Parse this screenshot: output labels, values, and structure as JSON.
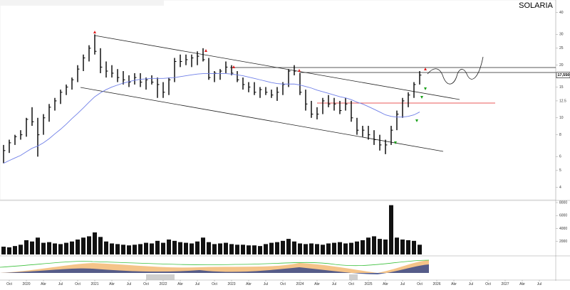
{
  "chart_data": {
    "type": "ohlc",
    "title": "SOLARIA",
    "log_scale": true,
    "bar_color": "#000000",
    "x": [
      "2019-09",
      "2019-10",
      "2019-11",
      "2019-12",
      "2020-01",
      "2020-02",
      "2020-03",
      "2020-04",
      "2020-05",
      "2020-06",
      "2020-07",
      "2020-08",
      "2020-09",
      "2020-10",
      "2020-11",
      "2020-12",
      "2021-01",
      "2021-02",
      "2021-03",
      "2021-04",
      "2021-05",
      "2021-06",
      "2021-07",
      "2021-08",
      "2021-09",
      "2021-10",
      "2021-11",
      "2021-12",
      "2022-01",
      "2022-02",
      "2022-03",
      "2022-04",
      "2022-05",
      "2022-06",
      "2022-07",
      "2022-08",
      "2022-09",
      "2022-10",
      "2022-11",
      "2022-12",
      "2023-01",
      "2023-02",
      "2023-03",
      "2023-04",
      "2023-05",
      "2023-06",
      "2023-07",
      "2023-08",
      "2023-09",
      "2023-10",
      "2023-11",
      "2023-12",
      "2024-01",
      "2024-02",
      "2024-03",
      "2024-04",
      "2024-05",
      "2024-06",
      "2024-07",
      "2024-08",
      "2024-09",
      "2024-10",
      "2024-11",
      "2024-12",
      "2025-01",
      "2025-02",
      "2025-03",
      "2025-04",
      "2025-05",
      "2025-06",
      "2025-07",
      "2025-08",
      "2025-09",
      "2025-10"
    ],
    "high": [
      7,
      7.5,
      8,
      8.5,
      10,
      11.5,
      10,
      10.5,
      12,
      13,
      14.5,
      15.5,
      17,
      20,
      23,
      26,
      30,
      25,
      21,
      20,
      19,
      18.5,
      17.5,
      18,
      18,
      17,
      17.5,
      17,
      16,
      17,
      22,
      23,
      23,
      23,
      24,
      25,
      22,
      18.5,
      19,
      21,
      20,
      18.5,
      17,
      16,
      16,
      15,
      15,
      14.5,
      15,
      16,
      19,
      20,
      18,
      14.5,
      12.5,
      11.5,
      13,
      13.5,
      13,
      12.5,
      13,
      12.5,
      10,
      9,
      9,
      8.5,
      8,
      7.5,
      9,
      11,
      13,
      14,
      16,
      18.5
    ],
    "low": [
      5.5,
      6.3,
      7,
      7.5,
      7.8,
      9,
      6,
      8,
      9.5,
      11,
      12,
      13.5,
      14.5,
      16,
      18.5,
      21,
      23,
      18,
      17,
      17,
      16,
      15.5,
      15,
      15.5,
      15,
      14.5,
      15.5,
      13,
      13,
      13.5,
      16,
      19.5,
      20,
      19.5,
      20,
      21,
      16.5,
      16,
      16.5,
      18,
      17.5,
      16,
      14.5,
      14,
      13.5,
      13,
      13.5,
      13,
      12.5,
      13.5,
      15,
      17.5,
      13.5,
      11,
      10,
      9.8,
      10.5,
      11.5,
      11,
      10.5,
      11,
      9.5,
      8,
      7.8,
      7.5,
      7,
      6.5,
      6.2,
      7,
      8.5,
      10,
      11.5,
      13,
      15.5
    ],
    "close": [
      6.5,
      7.2,
      7.8,
      8,
      9.8,
      9.5,
      8,
      10,
      11.5,
      12.5,
      14,
      15,
      16.5,
      19,
      22,
      25,
      24,
      19.5,
      18.5,
      18,
      17,
      16.5,
      16,
      17,
      16,
      16.5,
      16,
      15.5,
      14,
      16.5,
      21,
      21,
      21.5,
      22,
      22.5,
      21.5,
      17,
      18,
      18.5,
      19.5,
      18,
      16.5,
      15.5,
      15,
      14,
      14.5,
      14,
      13.5,
      14,
      15.5,
      18.5,
      18.5,
      14,
      12,
      10.5,
      10.5,
      12.5,
      12,
      12,
      11,
      12,
      10,
      8.5,
      8.5,
      8,
      7.5,
      7,
      7,
      8.5,
      10.5,
      12.5,
      13.5,
      15.5,
      17.55
    ],
    "ma": {
      "color": "#6f7fe8",
      "values": [
        5.5,
        5.7,
        5.9,
        6.1,
        6.4,
        6.7,
        6.9,
        7.2,
        7.6,
        8.1,
        8.6,
        9.2,
        9.9,
        10.6,
        11.4,
        12.3,
        13.2,
        13.9,
        14.5,
        15.0,
        15.4,
        15.8,
        16.1,
        16.4,
        16.6,
        16.7,
        16.8,
        16.8,
        16.8,
        16.9,
        17.0,
        17.2,
        17.4,
        17.6,
        17.8,
        17.9,
        17.9,
        17.9,
        17.9,
        17.9,
        17.8,
        17.6,
        17.4,
        17.1,
        16.8,
        16.5,
        16.2,
        15.9,
        15.7,
        15.6,
        15.6,
        15.6,
        15.4,
        15.1,
        14.8,
        14.4,
        14.1,
        13.8,
        13.5,
        13.2,
        13.0,
        12.7,
        12.3,
        12.0,
        11.6,
        11.2,
        10.8,
        10.4,
        10.2,
        10.1,
        10.1,
        10.2,
        10.4,
        10.8
      ]
    },
    "last_price": {
      "value": 17.55,
      "label": "17,550"
    },
    "xlim": [
      "2019-09",
      "2027-08"
    ],
    "ylim": [
      3.5,
      45
    ],
    "yticks": [
      4,
      5,
      6,
      8,
      10,
      12.5,
      15,
      20,
      25,
      30,
      40
    ],
    "xticks": [
      {
        "value": "2019-10",
        "label": "Oct"
      },
      {
        "value": "2020-01",
        "label": "2020"
      },
      {
        "value": "2020-04",
        "label": "Abr"
      },
      {
        "value": "2020-07",
        "label": "Jul"
      },
      {
        "value": "2020-10",
        "label": "Oct"
      },
      {
        "value": "2021-01",
        "label": "2021"
      },
      {
        "value": "2021-04",
        "label": "Abr"
      },
      {
        "value": "2021-07",
        "label": "Jul"
      },
      {
        "value": "2021-10",
        "label": "Oct"
      },
      {
        "value": "2022-01",
        "label": "2022"
      },
      {
        "value": "2022-04",
        "label": "Abr"
      },
      {
        "value": "2022-07",
        "label": "Jul"
      },
      {
        "value": "2022-10",
        "label": "Oct"
      },
      {
        "value": "2023-01",
        "label": "2023"
      },
      {
        "value": "2023-04",
        "label": "Abr"
      },
      {
        "value": "2023-07",
        "label": "Jul"
      },
      {
        "value": "2023-10",
        "label": "Oct"
      },
      {
        "value": "2024-01",
        "label": "2024"
      },
      {
        "value": "2024-04",
        "label": "Abr"
      },
      {
        "value": "2024-07",
        "label": "Jul"
      },
      {
        "value": "2024-10",
        "label": "Oct"
      },
      {
        "value": "2025-01",
        "label": "2025"
      },
      {
        "value": "2025-04",
        "label": "Abr"
      },
      {
        "value": "2025-07",
        "label": "Jul"
      },
      {
        "value": "2025-10",
        "label": "Oct"
      },
      {
        "value": "2026-01",
        "label": "2026"
      },
      {
        "value": "2026-04",
        "label": "Abr"
      },
      {
        "value": "2026-07",
        "label": "Jul"
      },
      {
        "value": "2026-10",
        "label": "Oct"
      },
      {
        "value": "2027-01",
        "label": "2027"
      },
      {
        "value": "2027-04",
        "label": "Abr"
      },
      {
        "value": "2027-07",
        "label": "Jul"
      }
    ],
    "volume": {
      "color": "#111111",
      "values": [
        1200,
        1100,
        1300,
        1500,
        2200,
        2000,
        2600,
        1800,
        1900,
        1700,
        1600,
        1800,
        2000,
        2300,
        2600,
        2800,
        3400,
        2700,
        2000,
        1700,
        1600,
        1500,
        1400,
        1500,
        1600,
        1800,
        1700,
        2100,
        1800,
        2300,
        2100,
        1900,
        1800,
        1700,
        2000,
        2600,
        1900,
        1600,
        1700,
        1800,
        1600,
        1500,
        1500,
        1400,
        1400,
        1300,
        1600,
        1800,
        1900,
        2100,
        2400,
        2000,
        1700,
        1600,
        1700,
        1600,
        1500,
        1700,
        1800,
        1900,
        1700,
        1800,
        2000,
        2200,
        2600,
        2800,
        2400,
        2300,
        7600,
        2600,
        2300,
        2200,
        2100,
        1500
      ],
      "ylim": [
        0,
        8000
      ],
      "yticks": [
        2000,
        4000,
        6000,
        8000
      ]
    }
  }
}
